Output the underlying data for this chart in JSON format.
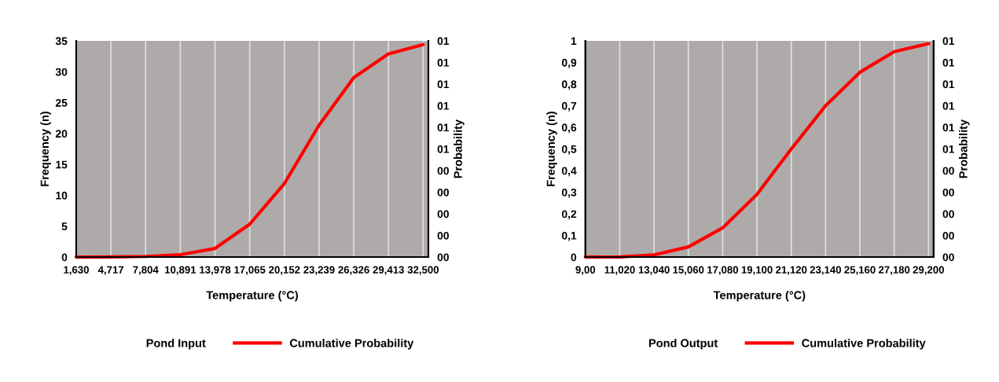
{
  "chart_data": [
    {
      "type": "line",
      "xlabel": "Temperature (°C)",
      "ylabel": "Frequency (n)",
      "y2label": "Probability",
      "categories": [
        "1,630",
        "4,717",
        "7,804",
        "10,891",
        "13,978",
        "17,065",
        "20,152",
        "23,239",
        "26,326",
        "29,413",
        "32,500"
      ],
      "ylim": [
        0,
        35
      ],
      "yticks": [
        0,
        5,
        10,
        15,
        20,
        25,
        30,
        35
      ],
      "y2lim": [
        0,
        1
      ],
      "y2ticks": [
        {
          "value": 0,
          "label": "00"
        },
        {
          "value": 0.1,
          "label": "00"
        },
        {
          "value": 0.2,
          "label": "00"
        },
        {
          "value": 0.3,
          "label": "00"
        },
        {
          "value": 0.4,
          "label": "00"
        },
        {
          "value": 0.5,
          "label": "01"
        },
        {
          "value": 0.6,
          "label": "01"
        },
        {
          "value": 0.7,
          "label": "01"
        },
        {
          "value": 0.8,
          "label": "01"
        },
        {
          "value": 0.9,
          "label": "01"
        },
        {
          "value": 1,
          "label": "01"
        }
      ],
      "grid": "x",
      "legend": "bottom",
      "series": [
        {
          "name": "Pond Input",
          "values": [
            null,
            null,
            null,
            null,
            null,
            null,
            null,
            null,
            null,
            null,
            null
          ]
        },
        {
          "name": "Cumulative Probability",
          "axis": "y2",
          "color": "#ff0000",
          "values": [
            0,
            0.001,
            0.003,
            0.011,
            0.04,
            0.152,
            0.34,
            0.61,
            0.83,
            0.94,
            0.983
          ]
        }
      ]
    },
    {
      "type": "line",
      "xlabel": "Temperature (°C)",
      "ylabel": "Frequency (n)",
      "y2label": "Probability",
      "categories": [
        "9,00",
        "11,020",
        "13,040",
        "15,060",
        "17,080",
        "19,100",
        "21,120",
        "23,140",
        "25,160",
        "27,180",
        "29,200"
      ],
      "ylim": [
        0,
        1
      ],
      "yticks": [
        0,
        {
          "value": 0.1,
          "label": "0,1"
        },
        {
          "value": 0.2,
          "label": "0,2"
        },
        {
          "value": 0.3,
          "label": "0,3"
        },
        {
          "value": 0.4,
          "label": "0,4"
        },
        {
          "value": 0.5,
          "label": "0,5"
        },
        {
          "value": 0.6,
          "label": "0,6"
        },
        {
          "value": 0.7,
          "label": "0,7"
        },
        {
          "value": 0.8,
          "label": "0,8"
        },
        {
          "value": 0.9,
          "label": "0,9"
        },
        1
      ],
      "y2lim": [
        0,
        1
      ],
      "y2ticks": [
        {
          "value": 0,
          "label": "00"
        },
        {
          "value": 0.1,
          "label": "00"
        },
        {
          "value": 0.2,
          "label": "00"
        },
        {
          "value": 0.3,
          "label": "00"
        },
        {
          "value": 0.4,
          "label": "00"
        },
        {
          "value": 0.5,
          "label": "01"
        },
        {
          "value": 0.6,
          "label": "01"
        },
        {
          "value": 0.7,
          "label": "01"
        },
        {
          "value": 0.8,
          "label": "01"
        },
        {
          "value": 0.9,
          "label": "01"
        },
        {
          "value": 1,
          "label": "01"
        }
      ],
      "grid": "x",
      "legend": "bottom",
      "series": [
        {
          "name": "Pond Output",
          "values": [
            null,
            null,
            null,
            null,
            null,
            null,
            null,
            null,
            null,
            null,
            null
          ]
        },
        {
          "name": "Cumulative Probability",
          "axis": "y2",
          "color": "#ff0000",
          "values": [
            0,
            0.001,
            0.01,
            0.047,
            0.135,
            0.29,
            0.5,
            0.7,
            0.855,
            0.95,
            0.987
          ]
        }
      ]
    }
  ]
}
